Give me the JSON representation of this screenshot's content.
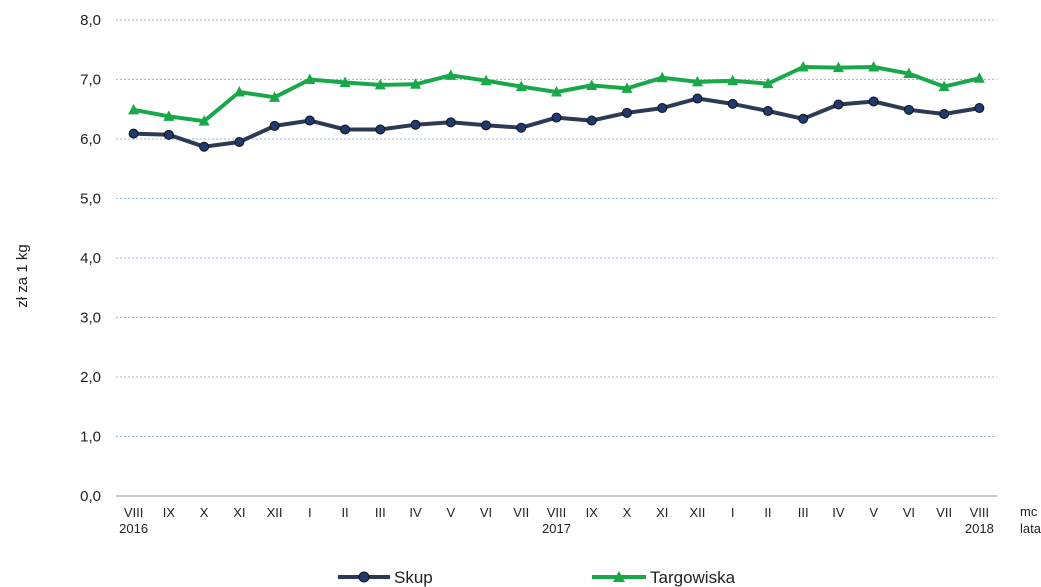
{
  "chart_data": {
    "type": "line",
    "title": "",
    "xlabel": "",
    "ylabel": "zł za 1 kg",
    "axis_unit_labels": [
      "mc",
      "lata"
    ],
    "ylim": [
      0,
      8
    ],
    "yticks": [
      "0,0",
      "1,0",
      "2,0",
      "3,0",
      "4,0",
      "5,0",
      "6,0",
      "7,0",
      "8,0"
    ],
    "categories": [
      "VIII",
      "IX",
      "X",
      "XI",
      "XII",
      "I",
      "II",
      "III",
      "IV",
      "V",
      "VI",
      "VII",
      "VIII",
      "IX",
      "X",
      "XI",
      "XII",
      "I",
      "II",
      "III",
      "IV",
      "V",
      "VI",
      "VII",
      "VIII"
    ],
    "year_labels": [
      {
        "index": 0,
        "label": "2016"
      },
      {
        "index": 12,
        "label": "2017"
      },
      {
        "index": 24,
        "label": "2018"
      }
    ],
    "grid": true,
    "legend_position": "bottom",
    "series": [
      {
        "name": "Skup",
        "color": "#2b3a55",
        "marker": "circle",
        "values": [
          6.09,
          6.07,
          5.87,
          5.95,
          6.22,
          6.31,
          6.16,
          6.16,
          6.24,
          6.28,
          6.23,
          6.19,
          6.36,
          6.31,
          6.44,
          6.52,
          6.68,
          6.59,
          6.47,
          6.34,
          6.58,
          6.63,
          6.49,
          6.42,
          6.52
        ]
      },
      {
        "name": "Targowiska",
        "color": "#18a849",
        "marker": "triangle",
        "values": [
          6.49,
          6.38,
          6.3,
          6.79,
          6.7,
          7.0,
          6.95,
          6.91,
          6.92,
          7.07,
          6.98,
          6.88,
          6.79,
          6.9,
          6.85,
          7.03,
          6.96,
          6.98,
          6.93,
          7.21,
          7.2,
          7.21,
          7.1,
          6.88,
          7.02
        ]
      }
    ]
  }
}
